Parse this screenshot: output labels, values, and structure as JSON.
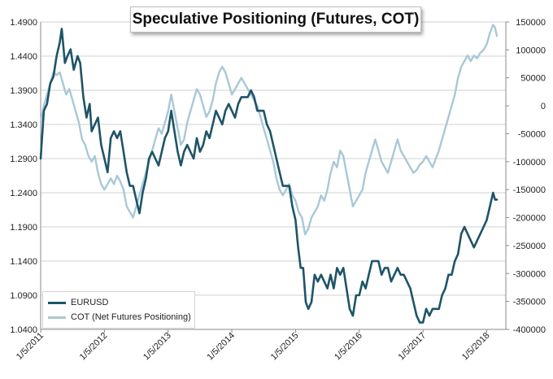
{
  "chart_data": {
    "type": "line",
    "title": "Speculative Positioning (Futures, COT)",
    "x_ticks": [
      "1/5/2011",
      "1/5/2012",
      "1/5/2013",
      "1/5/2014",
      "1/5/2015",
      "1/5/2016",
      "1/5/2017",
      "1/5/2018"
    ],
    "y_left": {
      "ticks": [
        "1.4900",
        "1.4400",
        "1.3900",
        "1.3400",
        "1.2900",
        "1.2400",
        "1.1900",
        "1.1400",
        "1.0900",
        "1.0400"
      ],
      "range": [
        1.04,
        1.49
      ]
    },
    "y_right": {
      "ticks": [
        "150000",
        "100000",
        "50000",
        "0",
        "-50000",
        "-100000",
        "-150000",
        "-200000",
        "-250000",
        "-300000",
        "-350000",
        "-400000"
      ],
      "range": [
        -400000,
        150000
      ]
    },
    "x_range": [
      2011.0,
      2018.3
    ],
    "grid": "horizontal",
    "legend_position": "bottom-left",
    "series": [
      {
        "name": "EURUSD",
        "axis": "left",
        "color": "#1e5468",
        "points": [
          [
            2011.0,
            1.29
          ],
          [
            2011.05,
            1.36
          ],
          [
            2011.1,
            1.37
          ],
          [
            2011.15,
            1.4
          ],
          [
            2011.2,
            1.41
          ],
          [
            2011.25,
            1.44
          ],
          [
            2011.3,
            1.46
          ],
          [
            2011.33,
            1.48
          ],
          [
            2011.38,
            1.43
          ],
          [
            2011.42,
            1.44
          ],
          [
            2011.47,
            1.45
          ],
          [
            2011.52,
            1.42
          ],
          [
            2011.58,
            1.44
          ],
          [
            2011.62,
            1.43
          ],
          [
            2011.67,
            1.38
          ],
          [
            2011.72,
            1.35
          ],
          [
            2011.77,
            1.37
          ],
          [
            2011.8,
            1.33
          ],
          [
            2011.85,
            1.34
          ],
          [
            2011.9,
            1.35
          ],
          [
            2011.95,
            1.31
          ],
          [
            2012.0,
            1.29
          ],
          [
            2012.05,
            1.27
          ],
          [
            2012.1,
            1.32
          ],
          [
            2012.15,
            1.33
          ],
          [
            2012.2,
            1.32
          ],
          [
            2012.25,
            1.33
          ],
          [
            2012.3,
            1.3
          ],
          [
            2012.35,
            1.27
          ],
          [
            2012.4,
            1.25
          ],
          [
            2012.45,
            1.25
          ],
          [
            2012.5,
            1.23
          ],
          [
            2012.55,
            1.21
          ],
          [
            2012.6,
            1.24
          ],
          [
            2012.65,
            1.26
          ],
          [
            2012.7,
            1.29
          ],
          [
            2012.75,
            1.3
          ],
          [
            2012.8,
            1.29
          ],
          [
            2012.85,
            1.28
          ],
          [
            2012.9,
            1.3
          ],
          [
            2012.95,
            1.32
          ],
          [
            2013.0,
            1.33
          ],
          [
            2013.05,
            1.36
          ],
          [
            2013.1,
            1.33
          ],
          [
            2013.15,
            1.3
          ],
          [
            2013.2,
            1.28
          ],
          [
            2013.25,
            1.3
          ],
          [
            2013.3,
            1.31
          ],
          [
            2013.35,
            1.3
          ],
          [
            2013.4,
            1.29
          ],
          [
            2013.45,
            1.32
          ],
          [
            2013.5,
            1.3
          ],
          [
            2013.55,
            1.31
          ],
          [
            2013.6,
            1.33
          ],
          [
            2013.65,
            1.32
          ],
          [
            2013.7,
            1.34
          ],
          [
            2013.75,
            1.36
          ],
          [
            2013.8,
            1.35
          ],
          [
            2013.85,
            1.34
          ],
          [
            2013.9,
            1.36
          ],
          [
            2013.95,
            1.37
          ],
          [
            2014.0,
            1.36
          ],
          [
            2014.05,
            1.35
          ],
          [
            2014.1,
            1.37
          ],
          [
            2014.15,
            1.38
          ],
          [
            2014.2,
            1.38
          ],
          [
            2014.25,
            1.38
          ],
          [
            2014.3,
            1.39
          ],
          [
            2014.35,
            1.38
          ],
          [
            2014.4,
            1.36
          ],
          [
            2014.45,
            1.36
          ],
          [
            2014.5,
            1.36
          ],
          [
            2014.55,
            1.34
          ],
          [
            2014.6,
            1.33
          ],
          [
            2014.65,
            1.31
          ],
          [
            2014.7,
            1.29
          ],
          [
            2014.75,
            1.27
          ],
          [
            2014.8,
            1.25
          ],
          [
            2014.85,
            1.25
          ],
          [
            2014.9,
            1.25
          ],
          [
            2014.95,
            1.22
          ],
          [
            2015.0,
            1.2
          ],
          [
            2015.04,
            1.16
          ],
          [
            2015.08,
            1.13
          ],
          [
            2015.12,
            1.13
          ],
          [
            2015.16,
            1.08
          ],
          [
            2015.2,
            1.07
          ],
          [
            2015.25,
            1.08
          ],
          [
            2015.3,
            1.12
          ],
          [
            2015.35,
            1.11
          ],
          [
            2015.4,
            1.12
          ],
          [
            2015.45,
            1.11
          ],
          [
            2015.5,
            1.1
          ],
          [
            2015.55,
            1.12
          ],
          [
            2015.6,
            1.1
          ],
          [
            2015.65,
            1.13
          ],
          [
            2015.7,
            1.12
          ],
          [
            2015.75,
            1.13
          ],
          [
            2015.8,
            1.1
          ],
          [
            2015.85,
            1.07
          ],
          [
            2015.9,
            1.06
          ],
          [
            2015.95,
            1.09
          ],
          [
            2016.0,
            1.09
          ],
          [
            2016.05,
            1.11
          ],
          [
            2016.1,
            1.1
          ],
          [
            2016.15,
            1.12
          ],
          [
            2016.2,
            1.14
          ],
          [
            2016.25,
            1.14
          ],
          [
            2016.3,
            1.14
          ],
          [
            2016.35,
            1.12
          ],
          [
            2016.4,
            1.13
          ],
          [
            2016.45,
            1.13
          ],
          [
            2016.5,
            1.11
          ],
          [
            2016.55,
            1.12
          ],
          [
            2016.6,
            1.13
          ],
          [
            2016.65,
            1.12
          ],
          [
            2016.7,
            1.12
          ],
          [
            2016.75,
            1.11
          ],
          [
            2016.8,
            1.1
          ],
          [
            2016.85,
            1.08
          ],
          [
            2016.9,
            1.06
          ],
          [
            2016.95,
            1.05
          ],
          [
            2017.0,
            1.05
          ],
          [
            2017.05,
            1.07
          ],
          [
            2017.1,
            1.06
          ],
          [
            2017.15,
            1.07
          ],
          [
            2017.2,
            1.07
          ],
          [
            2017.25,
            1.07
          ],
          [
            2017.3,
            1.09
          ],
          [
            2017.35,
            1.1
          ],
          [
            2017.4,
            1.12
          ],
          [
            2017.45,
            1.12
          ],
          [
            2017.5,
            1.14
          ],
          [
            2017.55,
            1.15
          ],
          [
            2017.6,
            1.18
          ],
          [
            2017.65,
            1.19
          ],
          [
            2017.7,
            1.18
          ],
          [
            2017.75,
            1.17
          ],
          [
            2017.8,
            1.16
          ],
          [
            2017.85,
            1.17
          ],
          [
            2017.9,
            1.18
          ],
          [
            2017.95,
            1.19
          ],
          [
            2018.0,
            1.2
          ],
          [
            2018.05,
            1.22
          ],
          [
            2018.1,
            1.24
          ],
          [
            2018.13,
            1.23
          ],
          [
            2018.16,
            1.23
          ]
        ]
      },
      {
        "name": "COT (Net Futures Positioning)",
        "axis": "right",
        "color": "#a8c8d6",
        "points": [
          [
            2011.0,
            -30000
          ],
          [
            2011.05,
            0
          ],
          [
            2011.1,
            20000
          ],
          [
            2011.15,
            40000
          ],
          [
            2011.2,
            60000
          ],
          [
            2011.25,
            55000
          ],
          [
            2011.3,
            60000
          ],
          [
            2011.35,
            40000
          ],
          [
            2011.4,
            20000
          ],
          [
            2011.45,
            30000
          ],
          [
            2011.5,
            10000
          ],
          [
            2011.55,
            -10000
          ],
          [
            2011.6,
            -30000
          ],
          [
            2011.65,
            -60000
          ],
          [
            2011.7,
            -70000
          ],
          [
            2011.75,
            -90000
          ],
          [
            2011.8,
            -100000
          ],
          [
            2011.85,
            -90000
          ],
          [
            2011.9,
            -120000
          ],
          [
            2011.95,
            -140000
          ],
          [
            2012.0,
            -150000
          ],
          [
            2012.05,
            -140000
          ],
          [
            2012.1,
            -130000
          ],
          [
            2012.15,
            -140000
          ],
          [
            2012.2,
            -125000
          ],
          [
            2012.25,
            -135000
          ],
          [
            2012.3,
            -150000
          ],
          [
            2012.35,
            -180000
          ],
          [
            2012.4,
            -190000
          ],
          [
            2012.45,
            -200000
          ],
          [
            2012.5,
            -180000
          ],
          [
            2012.55,
            -160000
          ],
          [
            2012.6,
            -140000
          ],
          [
            2012.65,
            -120000
          ],
          [
            2012.7,
            -100000
          ],
          [
            2012.75,
            -80000
          ],
          [
            2012.8,
            -60000
          ],
          [
            2012.85,
            -40000
          ],
          [
            2012.9,
            -50000
          ],
          [
            2012.95,
            -30000
          ],
          [
            2013.0,
            -10000
          ],
          [
            2013.05,
            20000
          ],
          [
            2013.1,
            -10000
          ],
          [
            2013.15,
            -40000
          ],
          [
            2013.2,
            -70000
          ],
          [
            2013.25,
            -60000
          ],
          [
            2013.3,
            -30000
          ],
          [
            2013.35,
            -10000
          ],
          [
            2013.4,
            10000
          ],
          [
            2013.45,
            30000
          ],
          [
            2013.5,
            20000
          ],
          [
            2013.55,
            0
          ],
          [
            2013.6,
            -20000
          ],
          [
            2013.65,
            -10000
          ],
          [
            2013.7,
            10000
          ],
          [
            2013.75,
            40000
          ],
          [
            2013.8,
            60000
          ],
          [
            2013.85,
            70000
          ],
          [
            2013.9,
            60000
          ],
          [
            2013.95,
            40000
          ],
          [
            2014.0,
            20000
          ],
          [
            2014.05,
            30000
          ],
          [
            2014.1,
            40000
          ],
          [
            2014.15,
            50000
          ],
          [
            2014.2,
            40000
          ],
          [
            2014.25,
            30000
          ],
          [
            2014.3,
            20000
          ],
          [
            2014.35,
            10000
          ],
          [
            2014.4,
            0
          ],
          [
            2014.45,
            -20000
          ],
          [
            2014.5,
            -40000
          ],
          [
            2014.55,
            -60000
          ],
          [
            2014.6,
            -80000
          ],
          [
            2014.65,
            -100000
          ],
          [
            2014.7,
            -130000
          ],
          [
            2014.75,
            -150000
          ],
          [
            2014.8,
            -160000
          ],
          [
            2014.85,
            -150000
          ],
          [
            2014.9,
            -140000
          ],
          [
            2014.95,
            -160000
          ],
          [
            2015.0,
            -170000
          ],
          [
            2015.05,
            -190000
          ],
          [
            2015.1,
            -200000
          ],
          [
            2015.15,
            -230000
          ],
          [
            2015.2,
            -220000
          ],
          [
            2015.25,
            -200000
          ],
          [
            2015.3,
            -190000
          ],
          [
            2015.35,
            -180000
          ],
          [
            2015.4,
            -160000
          ],
          [
            2015.45,
            -170000
          ],
          [
            2015.5,
            -150000
          ],
          [
            2015.55,
            -120000
          ],
          [
            2015.6,
            -100000
          ],
          [
            2015.65,
            -110000
          ],
          [
            2015.7,
            -80000
          ],
          [
            2015.75,
            -90000
          ],
          [
            2015.8,
            -120000
          ],
          [
            2015.85,
            -150000
          ],
          [
            2015.9,
            -180000
          ],
          [
            2015.95,
            -170000
          ],
          [
            2016.0,
            -160000
          ],
          [
            2016.05,
            -150000
          ],
          [
            2016.1,
            -120000
          ],
          [
            2016.15,
            -100000
          ],
          [
            2016.2,
            -80000
          ],
          [
            2016.25,
            -60000
          ],
          [
            2016.3,
            -80000
          ],
          [
            2016.35,
            -100000
          ],
          [
            2016.4,
            -110000
          ],
          [
            2016.45,
            -120000
          ],
          [
            2016.5,
            -100000
          ],
          [
            2016.55,
            -80000
          ],
          [
            2016.6,
            -60000
          ],
          [
            2016.65,
            -80000
          ],
          [
            2016.7,
            -90000
          ],
          [
            2016.75,
            -100000
          ],
          [
            2016.8,
            -110000
          ],
          [
            2016.85,
            -120000
          ],
          [
            2016.9,
            -115000
          ],
          [
            2016.95,
            -105000
          ],
          [
            2017.0,
            -100000
          ],
          [
            2017.05,
            -90000
          ],
          [
            2017.1,
            -100000
          ],
          [
            2017.15,
            -110000
          ],
          [
            2017.2,
            -95000
          ],
          [
            2017.25,
            -80000
          ],
          [
            2017.3,
            -60000
          ],
          [
            2017.35,
            -40000
          ],
          [
            2017.4,
            -20000
          ],
          [
            2017.45,
            0
          ],
          [
            2017.5,
            20000
          ],
          [
            2017.55,
            50000
          ],
          [
            2017.6,
            70000
          ],
          [
            2017.65,
            80000
          ],
          [
            2017.7,
            90000
          ],
          [
            2017.75,
            80000
          ],
          [
            2017.8,
            90000
          ],
          [
            2017.85,
            85000
          ],
          [
            2017.9,
            95000
          ],
          [
            2017.95,
            100000
          ],
          [
            2018.0,
            110000
          ],
          [
            2018.05,
            130000
          ],
          [
            2018.1,
            145000
          ],
          [
            2018.13,
            140000
          ],
          [
            2018.16,
            125000
          ]
        ]
      }
    ]
  }
}
